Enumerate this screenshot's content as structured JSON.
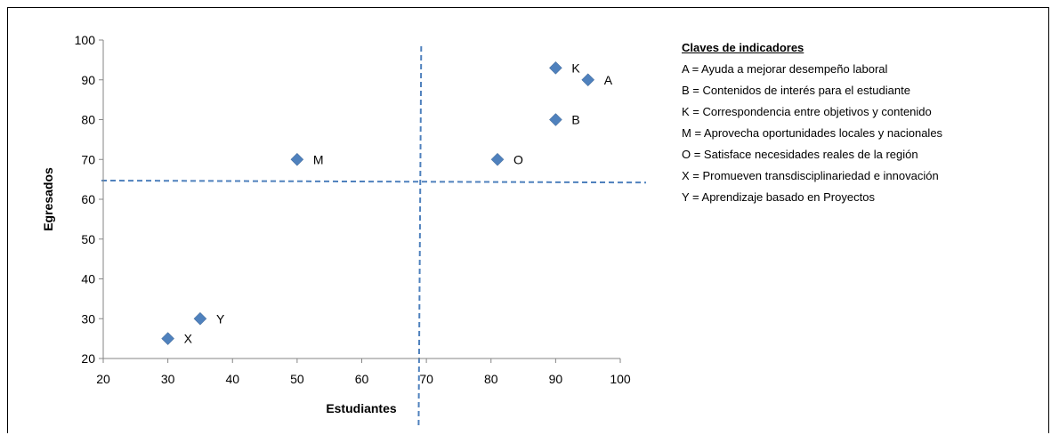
{
  "chart_data": {
    "type": "scatter",
    "xlabel": "Estudiantes",
    "ylabel": "Egresados",
    "xlim": [
      20,
      100
    ],
    "ylim": [
      20,
      100
    ],
    "xticks": [
      "20",
      "30",
      "40",
      "50",
      "60",
      "70",
      "80",
      "90",
      "100"
    ],
    "yticks": [
      "20",
      "30",
      "40",
      "50",
      "60",
      "70",
      "80",
      "90",
      "100"
    ],
    "grid": false,
    "marker": "diamond",
    "marker_color": "#4F81BD",
    "reference_line_color": "#4F81BD",
    "points": [
      {
        "label": "K",
        "x": 90,
        "y": 93
      },
      {
        "label": "A",
        "x": 95,
        "y": 90
      },
      {
        "label": "B",
        "x": 90,
        "y": 80
      },
      {
        "label": "M",
        "x": 50,
        "y": 70
      },
      {
        "label": "O",
        "x": 81,
        "y": 70
      },
      {
        "label": "Y",
        "x": 35,
        "y": 30
      },
      {
        "label": "X",
        "x": 30,
        "y": 25
      }
    ],
    "vertical_reference": {
      "x_top": 69.2,
      "x_bottom": 68.8,
      "style": "dashed"
    },
    "horizontal_reference": {
      "y_left": 64.7,
      "y_right": 64.2,
      "style": "dashed"
    }
  },
  "legend": {
    "title": "Claves de indicadores",
    "items": [
      "A = Ayuda a mejorar desempeño laboral",
      "B = Contenidos de interés para el estudiante",
      "K = Correspondencia entre objetivos y contenido",
      "M = Aprovecha oportunidades locales y nacionales",
      "O = Satisface necesidades reales de la región",
      "X = Promueven transdisciplinariedad e innovación",
      "Y = Aprendizaje basado en Proyectos"
    ]
  }
}
